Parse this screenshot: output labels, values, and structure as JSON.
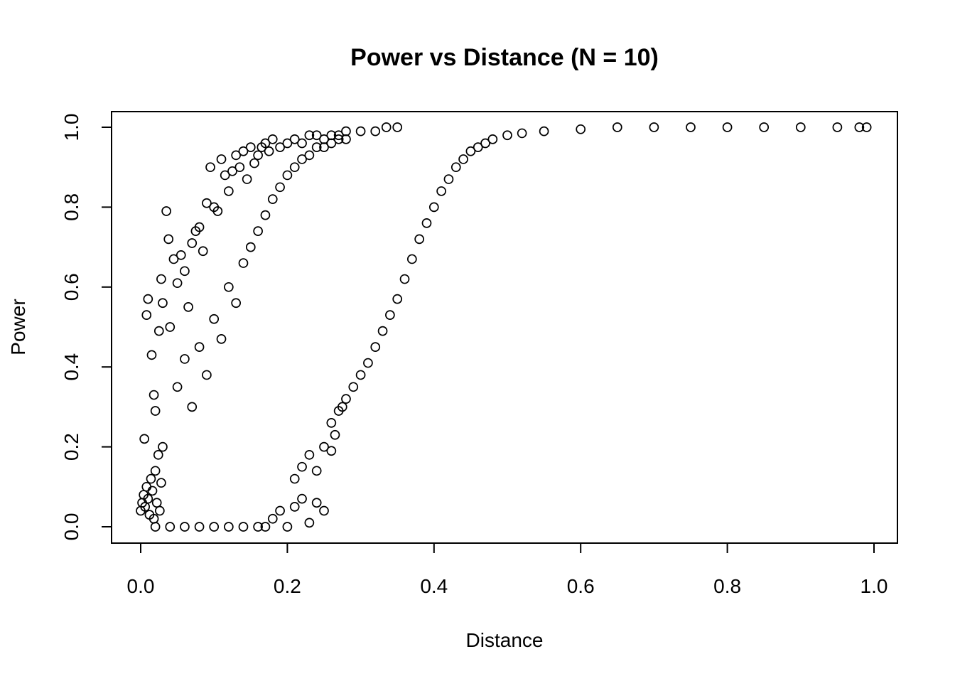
{
  "chart_data": {
    "type": "scatter",
    "title": "Power vs Distance (N = 10)",
    "xlabel": "Distance",
    "ylabel": "Power",
    "xlim": [
      0.0,
      1.0
    ],
    "ylim": [
      0.0,
      1.0
    ],
    "x_ticks": [
      "0.0",
      "0.2",
      "0.4",
      "0.6",
      "0.8",
      "1.0"
    ],
    "y_ticks": [
      "0.0",
      "0.2",
      "0.4",
      "0.6",
      "0.8",
      "1.0"
    ],
    "grid": false,
    "legend": "none",
    "marker": "open-circle",
    "point_color": "#000000",
    "series": [
      {
        "points": [
          [
            0.0,
            0.04
          ],
          [
            0.002,
            0.06
          ],
          [
            0.004,
            0.08
          ],
          [
            0.006,
            0.05
          ],
          [
            0.008,
            0.1
          ],
          [
            0.01,
            0.07
          ],
          [
            0.012,
            0.03
          ],
          [
            0.014,
            0.12
          ],
          [
            0.016,
            0.09
          ],
          [
            0.018,
            0.02
          ],
          [
            0.02,
            0.14
          ],
          [
            0.022,
            0.06
          ],
          [
            0.024,
            0.18
          ],
          [
            0.026,
            0.04
          ],
          [
            0.028,
            0.11
          ],
          [
            0.03,
            0.2
          ],
          [
            0.005,
            0.22
          ],
          [
            0.008,
            0.53
          ],
          [
            0.01,
            0.57
          ],
          [
            0.015,
            0.43
          ],
          [
            0.018,
            0.33
          ],
          [
            0.02,
            0.29
          ],
          [
            0.025,
            0.49
          ],
          [
            0.028,
            0.62
          ],
          [
            0.03,
            0.56
          ],
          [
            0.035,
            0.79
          ],
          [
            0.038,
            0.72
          ],
          [
            0.04,
            0.5
          ],
          [
            0.045,
            0.67
          ],
          [
            0.05,
            0.61
          ],
          [
            0.055,
            0.68
          ],
          [
            0.06,
            0.64
          ],
          [
            0.065,
            0.55
          ],
          [
            0.07,
            0.71
          ],
          [
            0.075,
            0.74
          ],
          [
            0.08,
            0.75
          ],
          [
            0.085,
            0.69
          ],
          [
            0.09,
            0.81
          ],
          [
            0.095,
            0.9
          ],
          [
            0.1,
            0.8
          ],
          [
            0.105,
            0.79
          ],
          [
            0.11,
            0.92
          ],
          [
            0.115,
            0.88
          ],
          [
            0.12,
            0.84
          ],
          [
            0.125,
            0.89
          ],
          [
            0.13,
            0.93
          ],
          [
            0.135,
            0.9
          ],
          [
            0.14,
            0.94
          ],
          [
            0.145,
            0.87
          ],
          [
            0.15,
            0.95
          ],
          [
            0.155,
            0.91
          ],
          [
            0.16,
            0.93
          ],
          [
            0.165,
            0.95
          ],
          [
            0.17,
            0.96
          ],
          [
            0.175,
            0.94
          ],
          [
            0.18,
            0.97
          ],
          [
            0.19,
            0.95
          ],
          [
            0.2,
            0.96
          ],
          [
            0.21,
            0.97
          ],
          [
            0.22,
            0.96
          ],
          [
            0.23,
            0.98
          ],
          [
            0.24,
            0.98
          ],
          [
            0.25,
            0.97
          ],
          [
            0.26,
            0.98
          ],
          [
            0.27,
            0.98
          ],
          [
            0.28,
            0.99
          ],
          [
            0.3,
            0.99
          ],
          [
            0.32,
            0.99
          ],
          [
            0.335,
            1.0
          ],
          [
            0.35,
            1.0
          ],
          [
            0.05,
            0.35
          ],
          [
            0.06,
            0.42
          ],
          [
            0.07,
            0.3
          ],
          [
            0.08,
            0.45
          ],
          [
            0.09,
            0.38
          ],
          [
            0.1,
            0.52
          ],
          [
            0.11,
            0.47
          ],
          [
            0.12,
            0.6
          ],
          [
            0.13,
            0.56
          ],
          [
            0.14,
            0.66
          ],
          [
            0.15,
            0.7
          ],
          [
            0.16,
            0.74
          ],
          [
            0.17,
            0.78
          ],
          [
            0.18,
            0.82
          ],
          [
            0.19,
            0.85
          ],
          [
            0.2,
            0.88
          ],
          [
            0.21,
            0.9
          ],
          [
            0.22,
            0.92
          ],
          [
            0.23,
            0.93
          ],
          [
            0.24,
            0.95
          ],
          [
            0.25,
            0.95
          ],
          [
            0.26,
            0.96
          ],
          [
            0.27,
            0.97
          ],
          [
            0.28,
            0.97
          ],
          [
            0.02,
            0.0
          ],
          [
            0.04,
            0.0
          ],
          [
            0.06,
            0.0
          ],
          [
            0.08,
            0.0
          ],
          [
            0.1,
            0.0
          ],
          [
            0.12,
            0.0
          ],
          [
            0.14,
            0.0
          ],
          [
            0.16,
            0.0
          ],
          [
            0.17,
            0.0
          ],
          [
            0.18,
            0.02
          ],
          [
            0.19,
            0.04
          ],
          [
            0.2,
            0.0
          ],
          [
            0.21,
            0.05
          ],
          [
            0.22,
            0.07
          ],
          [
            0.23,
            0.01
          ],
          [
            0.24,
            0.06
          ],
          [
            0.25,
            0.04
          ],
          [
            0.21,
            0.12
          ],
          [
            0.22,
            0.15
          ],
          [
            0.23,
            0.18
          ],
          [
            0.24,
            0.14
          ],
          [
            0.25,
            0.2
          ],
          [
            0.26,
            0.19
          ],
          [
            0.26,
            0.26
          ],
          [
            0.265,
            0.23
          ],
          [
            0.27,
            0.29
          ],
          [
            0.275,
            0.3
          ],
          [
            0.28,
            0.32
          ],
          [
            0.29,
            0.35
          ],
          [
            0.3,
            0.38
          ],
          [
            0.31,
            0.41
          ],
          [
            0.32,
            0.45
          ],
          [
            0.33,
            0.49
          ],
          [
            0.34,
            0.53
          ],
          [
            0.35,
            0.57
          ],
          [
            0.36,
            0.62
          ],
          [
            0.37,
            0.67
          ],
          [
            0.38,
            0.72
          ],
          [
            0.39,
            0.76
          ],
          [
            0.4,
            0.8
          ],
          [
            0.41,
            0.84
          ],
          [
            0.42,
            0.87
          ],
          [
            0.43,
            0.9
          ],
          [
            0.44,
            0.92
          ],
          [
            0.45,
            0.94
          ],
          [
            0.46,
            0.95
          ],
          [
            0.47,
            0.96
          ],
          [
            0.48,
            0.97
          ],
          [
            0.5,
            0.98
          ],
          [
            0.52,
            0.985
          ],
          [
            0.55,
            0.99
          ],
          [
            0.6,
            0.995
          ],
          [
            0.65,
            1.0
          ],
          [
            0.7,
            1.0
          ],
          [
            0.75,
            1.0
          ],
          [
            0.8,
            1.0
          ],
          [
            0.85,
            1.0
          ],
          [
            0.9,
            1.0
          ],
          [
            0.95,
            1.0
          ],
          [
            0.98,
            1.0
          ],
          [
            0.99,
            1.0
          ]
        ]
      }
    ]
  }
}
